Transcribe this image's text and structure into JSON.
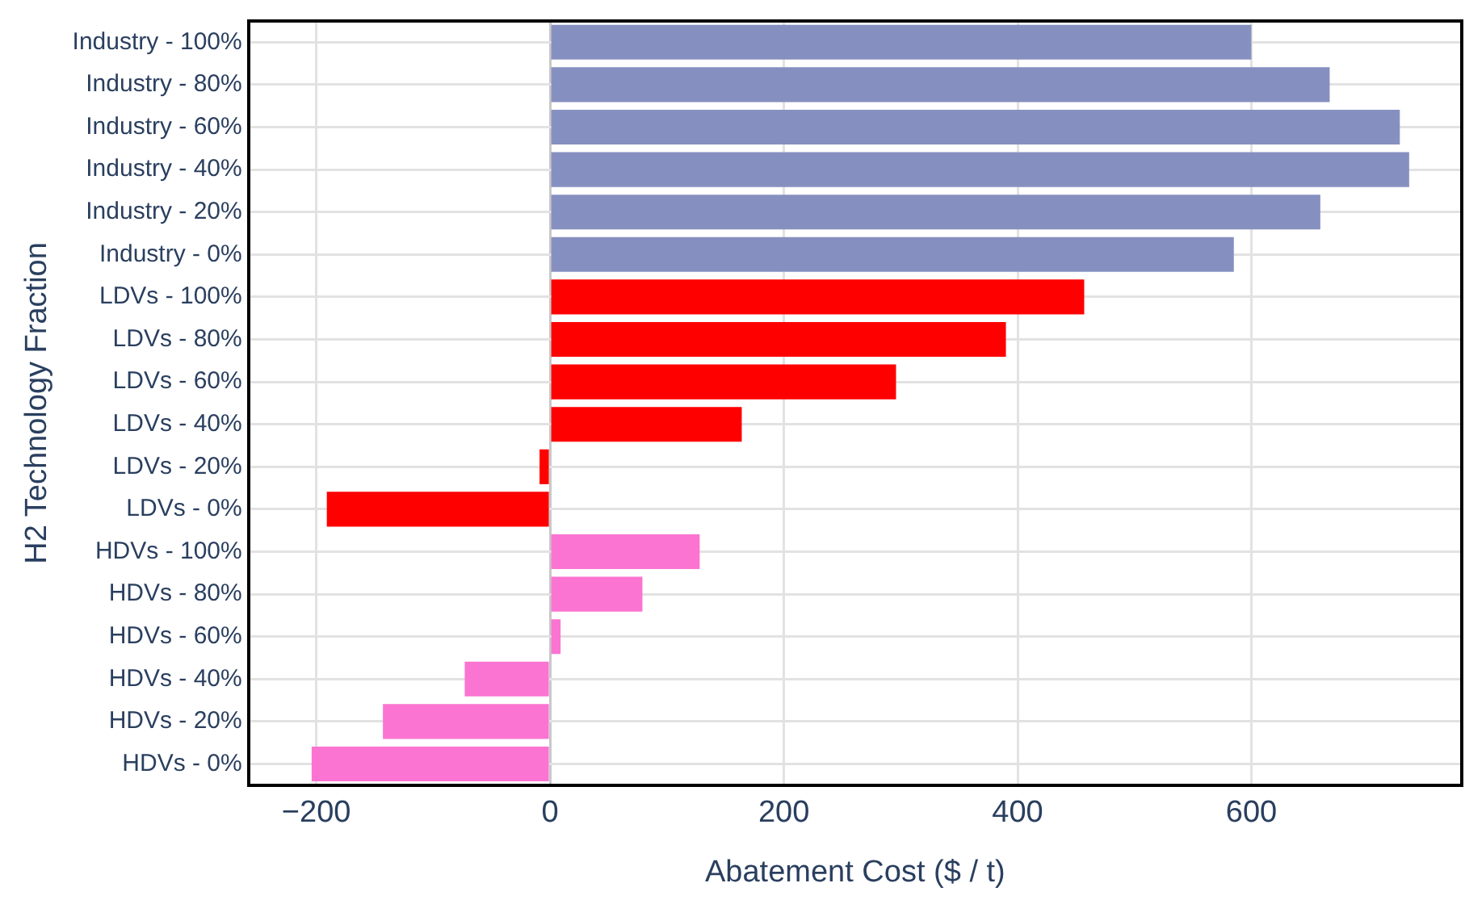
{
  "chart_data": {
    "type": "bar",
    "orientation": "horizontal",
    "xlabel": "Abatement Cost ($ / t)",
    "ylabel": "H2 Technology Fraction",
    "categories": [
      "Industry - 100%",
      "Industry - 80%",
      "Industry - 60%",
      "Industry - 40%",
      "Industry - 20%",
      "Industry - 0%",
      "LDVs - 100%",
      "LDVs - 80%",
      "LDVs - 60%",
      "LDVs - 40%",
      "LDVs - 20%",
      "LDVs - 0%",
      "HDVs - 100%",
      "HDVs - 80%",
      "HDVs - 60%",
      "HDVs - 40%",
      "HDVs - 20%",
      "HDVs - 0%"
    ],
    "values": [
      600,
      667,
      727,
      735,
      659,
      585,
      457,
      390,
      296,
      164,
      -9,
      -191,
      128,
      79,
      9,
      -73,
      -143,
      -204
    ],
    "colors": [
      "#8690c0",
      "#8690c0",
      "#8690c0",
      "#8690c0",
      "#8690c0",
      "#8690c0",
      "#ff0000",
      "#ff0000",
      "#ff0000",
      "#ff0000",
      "#ff0000",
      "#ff0000",
      "#fb74d2",
      "#fb74d2",
      "#fb74d2",
      "#fb74d2",
      "#fb74d2",
      "#fb74d2"
    ],
    "xlim": [
      -258,
      780
    ],
    "xticks": [
      -200,
      0,
      200,
      400,
      600
    ],
    "grid": true,
    "legend": false
  }
}
